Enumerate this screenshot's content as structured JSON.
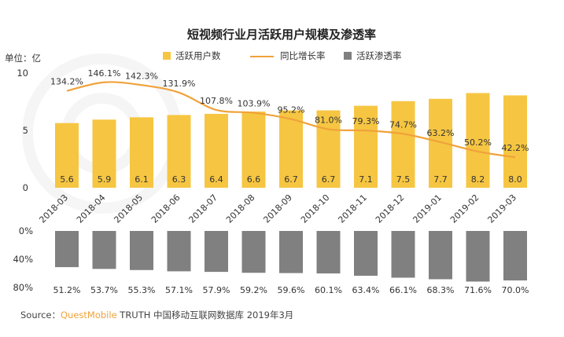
{
  "chart_data": {
    "type": "bar",
    "title": "短视频行业月活跃用户规模及渗透率",
    "unit_label": "单位：亿",
    "categories": [
      "2018-03",
      "2018-04",
      "2018-05",
      "2018-06",
      "2018-07",
      "2018-08",
      "2018-09",
      "2018-10",
      "2018-11",
      "2018-12",
      "2019-01",
      "2019-02",
      "2019-03"
    ],
    "series": [
      {
        "name": "活跃用户数",
        "values": [
          5.6,
          5.9,
          6.1,
          6.3,
          6.4,
          6.6,
          6.7,
          6.7,
          7.1,
          7.5,
          7.7,
          8.2,
          8.0
        ],
        "labels": [
          "5.6",
          "5.9",
          "6.1",
          "6.3",
          "6.4",
          "6.6",
          "6.7",
          "6.7",
          "7.1",
          "7.5",
          "7.7",
          "8.2",
          "8.0"
        ],
        "color": "#f6c642"
      },
      {
        "name": "同比增长率",
        "values": [
          134.2,
          146.1,
          142.3,
          131.9,
          107.8,
          103.9,
          95.2,
          81.0,
          79.3,
          74.7,
          63.2,
          50.2,
          42.2
        ],
        "labels": [
          "134.2%",
          "146.1%",
          "142.3%",
          "131.9%",
          "107.8%",
          "103.9%",
          "95.2%",
          "81.0%",
          "79.3%",
          "74.7%",
          "63.2%",
          "50.2%",
          "42.2%"
        ],
        "color": "#f0a23b"
      },
      {
        "name": "活跃渗透率",
        "values": [
          51.2,
          53.7,
          55.3,
          57.1,
          57.9,
          59.2,
          59.6,
          60.1,
          63.4,
          66.1,
          68.3,
          71.6,
          70.0
        ],
        "labels": [
          "51.2%",
          "53.7%",
          "55.3%",
          "57.1%",
          "57.9%",
          "59.2%",
          "59.6%",
          "60.1%",
          "63.4%",
          "66.1%",
          "68.3%",
          "71.6%",
          "70.0%"
        ],
        "color": "#808080"
      }
    ],
    "y_ticks": [
      "0",
      "5",
      "10"
    ],
    "y_range": [
      0,
      10
    ],
    "penetration_ticks": [
      "0%",
      "40%",
      "80%"
    ],
    "penetration_range": [
      0,
      80
    ],
    "legend_position": "top-center",
    "grid": false,
    "source_prefix": "Source：",
    "source_brand": "QuestMobile",
    "source_rest": " TRUTH 中国移动互联网数据库 2019年3月"
  }
}
